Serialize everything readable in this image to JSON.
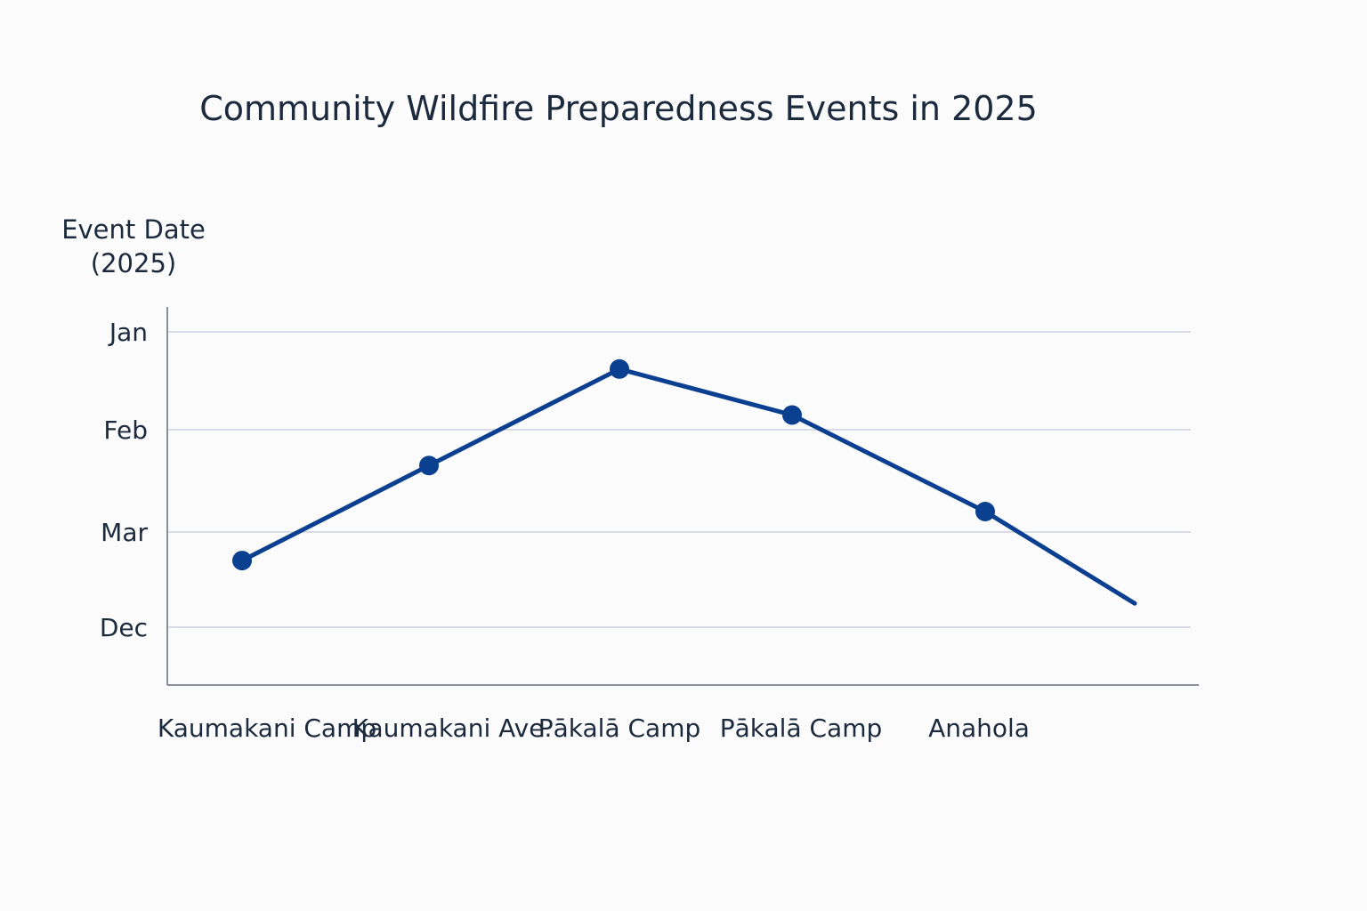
{
  "chart_data": {
    "type": "line",
    "title": "Community Wildfire Preparedness Events in 2025",
    "ylabel": [
      "Event Date",
      "(2025)"
    ],
    "xlabel": "",
    "categories": [
      "Kaumakani Camp",
      "Kaumakani Ave.",
      "Pākalā Camp",
      "Pākalā Camp",
      "Anahola",
      ""
    ],
    "y_ticks": [
      "Jan",
      "Feb",
      "Mar",
      "Dec"
    ],
    "y_tick_values": [
      0,
      1,
      2,
      3
    ],
    "ylim": [
      -0.3,
      3.6
    ],
    "series": [
      {
        "name": "Event Date",
        "color": "#0b3f8f",
        "values": [
          2.3,
          1.35,
          0.38,
          0.85,
          1.8,
          2.75
        ],
        "markers": [
          true,
          true,
          true,
          true,
          true,
          false
        ]
      }
    ],
    "grid": true
  }
}
